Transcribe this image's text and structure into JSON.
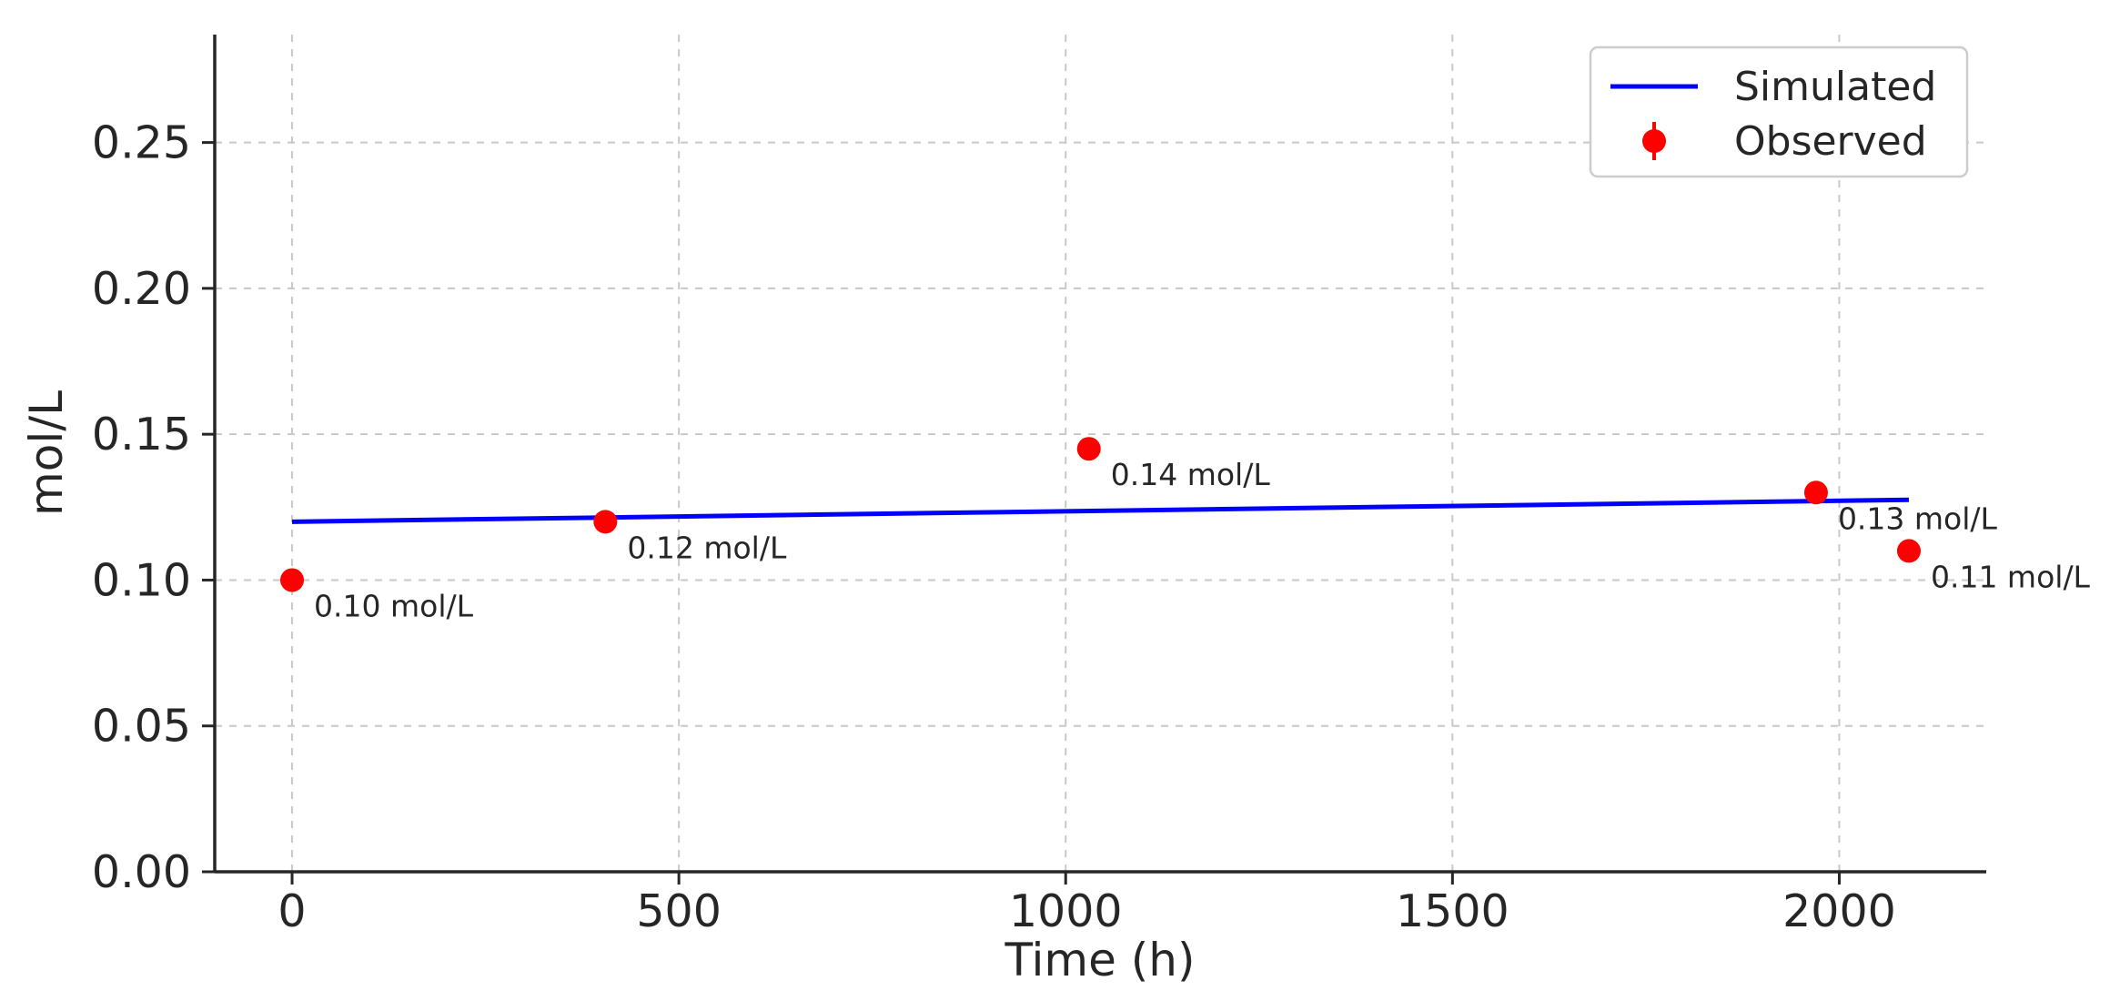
{
  "chart_data": {
    "type": "line",
    "title": "",
    "xlabel": "Time (h)",
    "ylabel": "mol/L",
    "xlim": [
      -100,
      2190
    ],
    "ylim": [
      0,
      0.287
    ],
    "x_ticks": [
      0,
      500,
      1000,
      1500,
      2000
    ],
    "x_tick_labels": [
      "0",
      "500",
      "1000",
      "1500",
      "2000"
    ],
    "y_ticks": [
      0,
      0.05,
      0.1,
      0.15,
      0.2,
      0.25
    ],
    "y_tick_labels": [
      "0.00",
      "0.05",
      "0.10",
      "0.15",
      "0.20",
      "0.25"
    ],
    "grid": true,
    "legend_position": "top-right",
    "series": [
      {
        "name": "Simulated",
        "kind": "line",
        "color": "#0000ff",
        "x": [
          0,
          2090
        ],
        "y": [
          0.12,
          0.1275
        ]
      },
      {
        "name": "Observed",
        "kind": "errorbar-points",
        "color": "#ff0000",
        "x": [
          0,
          405,
          1030,
          1970,
          2090
        ],
        "y": [
          0.1,
          0.12,
          0.145,
          0.13,
          0.11
        ],
        "yerr": [
          0.0025,
          0.0025,
          0.0025,
          0.0025,
          0.0025
        ],
        "labels": [
          "0.10 mol/L",
          "0.12 mol/L",
          "0.14 mol/L",
          "0.13 mol/L",
          "0.11 mol/L"
        ]
      }
    ]
  }
}
